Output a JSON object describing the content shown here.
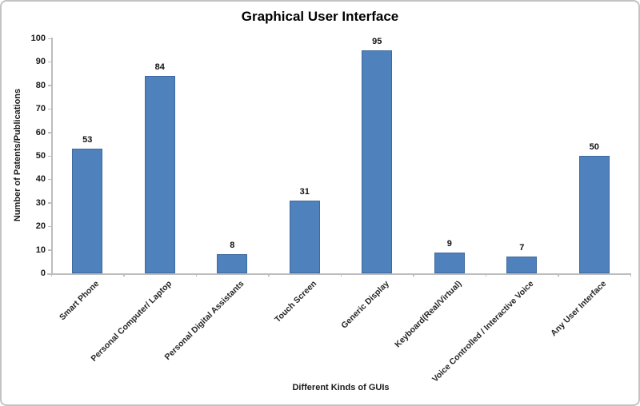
{
  "chart_data": {
    "type": "bar",
    "title": "Graphical User Interface",
    "xlabel": "Different Kinds of GUIs",
    "ylabel": "Number of Patents/Publications",
    "categories": [
      "Smart Phone",
      "Personal Computer/ Laptop",
      "Personal Digital Assistants",
      "Touch Screen",
      "Generic Display",
      "Keyboard(Real/Virtual)",
      "Voice Controlled / Interactive Voice",
      "Any User Interface"
    ],
    "values": [
      53,
      84,
      8,
      31,
      95,
      9,
      7,
      50
    ],
    "data_labels": [
      53,
      84,
      8,
      31,
      95,
      9,
      7,
      50
    ],
    "ylim": [
      0,
      100
    ],
    "ytick_step": 10,
    "ytick_labels": [
      "0",
      "10",
      "20",
      "30",
      "40",
      "50",
      "60",
      "70",
      "80",
      "90",
      "100"
    ],
    "grid": false,
    "legend": "none",
    "colors": {
      "bar_fill": "#4F81BD",
      "bar_border": "#3E699E",
      "axis_line": "#BDBDBD",
      "text": "#1a1a1a",
      "title_text": "#000000",
      "background": "#FFFFFF",
      "frame_border": "#C3C3C3"
    }
  }
}
